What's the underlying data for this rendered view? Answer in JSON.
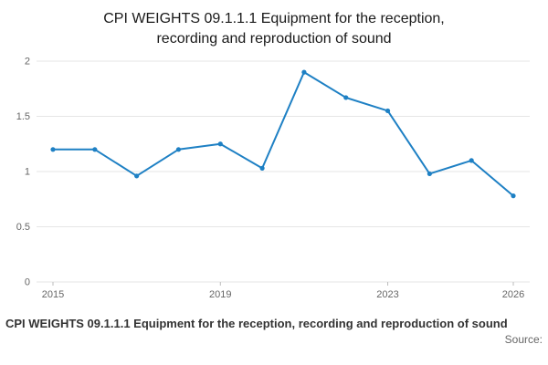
{
  "title": "CPI WEIGHTS 09.1.1.1 Equipment for the reception, recording and reproduction of sound",
  "footer": {
    "caption": "CPI WEIGHTS 09.1.1.1 Equipment for the reception, recording and reproduction of sound",
    "source_label": "Source:"
  },
  "chart_data": {
    "type": "line",
    "title": "CPI WEIGHTS 09.1.1.1 Equipment for the reception, recording and reproduction of sound",
    "x": [
      2015,
      2016,
      2017,
      2018,
      2019,
      2020,
      2021,
      2022,
      2023,
      2024,
      2025,
      2026
    ],
    "values": [
      1.2,
      1.2,
      0.96,
      1.2,
      1.25,
      1.03,
      1.9,
      1.67,
      1.55,
      0.98,
      1.1,
      0.78
    ],
    "xlabel": "",
    "ylabel": "",
    "ylim": [
      0,
      2
    ],
    "yticks": [
      0,
      0.5,
      1,
      1.5,
      2
    ],
    "xticks": [
      2015,
      2019,
      2023,
      2026
    ],
    "grid": true,
    "legend": "none",
    "line_color": "#1e80c4",
    "grid_color": "#e6e6e6",
    "axis_tick_color": "#bbbbbb"
  }
}
